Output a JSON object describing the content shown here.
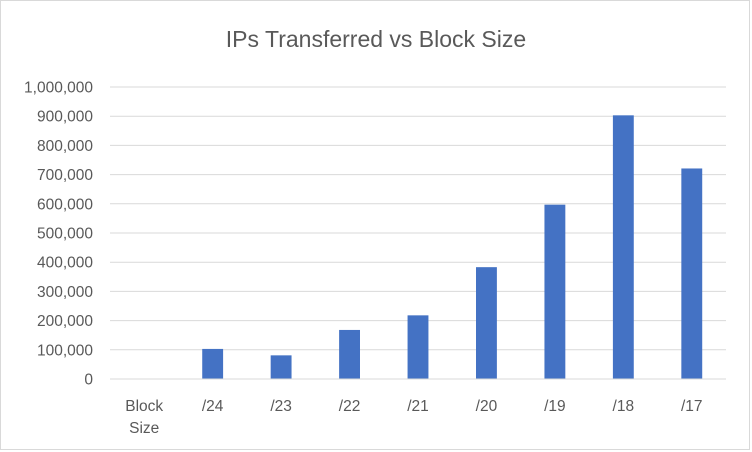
{
  "chart_data": {
    "type": "bar",
    "title": "IPs Transferred vs Block Size",
    "xlabel": "",
    "ylabel": "",
    "categories": [
      "Block Size",
      "/24",
      "/23",
      "/22",
      "/21",
      "/20",
      "/19",
      "/18",
      "/17"
    ],
    "values": [
      0,
      103000,
      81000,
      168000,
      218000,
      383000,
      597000,
      903000,
      721000
    ],
    "ylim": [
      0,
      1000000
    ],
    "yticks": [
      0,
      100000,
      200000,
      300000,
      400000,
      500000,
      600000,
      700000,
      800000,
      900000,
      1000000
    ],
    "ytick_labels": [
      "0",
      "100,000",
      "200,000",
      "300,000",
      "400,000",
      "500,000",
      "600,000",
      "700,000",
      "800,000",
      "900,000",
      "1,000,000"
    ],
    "bar_color": "#4472c4",
    "gridlines": true,
    "legend": "none"
  }
}
